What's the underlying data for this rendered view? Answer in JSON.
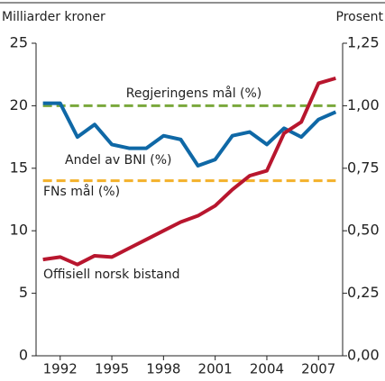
{
  "chart_data": {
    "type": "line",
    "y_label": "Milliarder kroner",
    "y2_label": "Prosent",
    "x": [
      1991,
      1992,
      1993,
      1994,
      1995,
      1996,
      1997,
      1998,
      1999,
      2000,
      2001,
      2002,
      2003,
      2004,
      2005,
      2006,
      2007,
      2008
    ],
    "xlim": [
      1990.6,
      2008.4
    ],
    "xticks": [
      1992,
      1995,
      1998,
      2001,
      2004,
      2007
    ],
    "ylim": [
      0,
      25
    ],
    "yticks": [
      0,
      5,
      10,
      15,
      20,
      25
    ],
    "y2lim": [
      0,
      1.25
    ],
    "y2ticks": [
      {
        "value": 0,
        "label": "0,00"
      },
      {
        "value": 0.25,
        "label": "0,25"
      },
      {
        "value": 0.5,
        "label": "0,50"
      },
      {
        "value": 0.75,
        "label": "0,75"
      },
      {
        "value": 1.0,
        "label": "1,00"
      },
      {
        "value": 1.25,
        "label": "1,25"
      }
    ],
    "series": [
      {
        "name": "Regjeringens mål (%)",
        "color": "#7aa83c",
        "dashed": true,
        "axis": "y2",
        "values": [
          1.0,
          1.0,
          1.0,
          1.0,
          1.0,
          1.0,
          1.0,
          1.0,
          1.0,
          1.0,
          1.0,
          1.0,
          1.0,
          1.0,
          1.0,
          1.0,
          1.0,
          1.0
        ]
      },
      {
        "name": "FNs mål (%)",
        "color": "#f3b12a",
        "dashed": true,
        "axis": "y2",
        "values": [
          0.7,
          0.7,
          0.7,
          0.7,
          0.7,
          0.7,
          0.7,
          0.7,
          0.7,
          0.7,
          0.7,
          0.7,
          0.7,
          0.7,
          0.7,
          0.7,
          0.7,
          0.7
        ]
      },
      {
        "name": "Andel av BNI (%)",
        "color": "#0f68a6",
        "axis": "y2",
        "values": [
          1.01,
          1.01,
          0.875,
          0.925,
          0.845,
          0.83,
          0.83,
          0.88,
          0.865,
          0.76,
          0.785,
          0.88,
          0.895,
          0.845,
          0.91,
          0.875,
          0.945,
          0.975
        ]
      },
      {
        "name": "Offisiell norsk bistand",
        "color": "#b8162e",
        "values": [
          7.7,
          7.9,
          7.3,
          8.0,
          7.9,
          8.6,
          9.3,
          10.0,
          10.7,
          11.2,
          12.0,
          13.3,
          14.4,
          14.8,
          17.8,
          18.7,
          21.8,
          22.2
        ]
      }
    ]
  }
}
